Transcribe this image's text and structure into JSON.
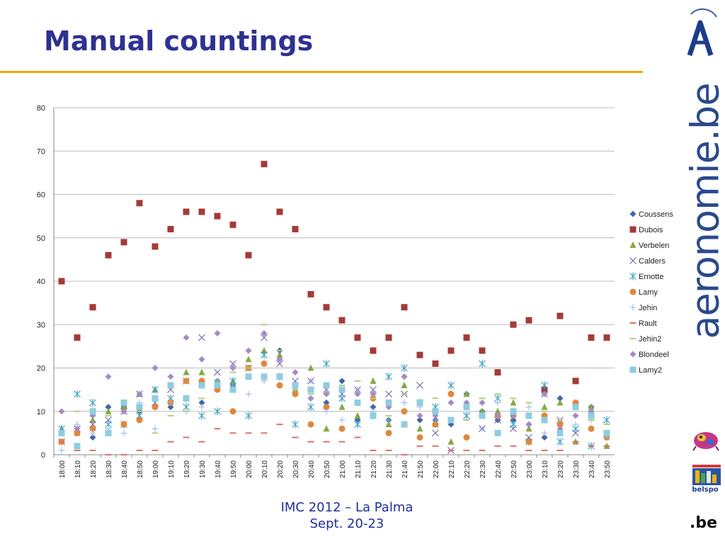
{
  "title": "Manual countings",
  "footer": {
    "line1": "IMC 2012 – La Palma",
    "line2": "Sept. 20-23"
  },
  "brand": {
    "site_name": "aeronomie.be",
    "belspo_label": "belspo",
    "be_label": ".be"
  },
  "chart_data": {
    "type": "scatter",
    "title": "",
    "xlabel": "",
    "ylabel": "",
    "ylim": [
      0,
      80
    ],
    "yticks": [
      0,
      10,
      20,
      30,
      40,
      50,
      60,
      70,
      80
    ],
    "grid": "horizontal",
    "legend_position": "right",
    "categories": [
      "18:00",
      "18:10",
      "18:20",
      "18:30",
      "18:40",
      "18:50",
      "19:00",
      "19:10",
      "19:20",
      "19:30",
      "19:40",
      "19:50",
      "20:00",
      "20:10",
      "20:20",
      "20:30",
      "20:40",
      "20:50",
      "21:00",
      "21:10",
      "21:20",
      "21:30",
      "21:40",
      "21:50",
      "22:00",
      "22:10",
      "22:20",
      "22:30",
      "22:40",
      "22:50",
      "23:00",
      "23:10",
      "23:20",
      "23:30",
      "23:40",
      "23:50"
    ],
    "series": [
      {
        "name": "Coussens",
        "marker": "diamond",
        "color": "#3f66a8",
        "values": [
          5,
          5,
          4,
          11,
          11,
          10,
          11,
          11,
          13,
          12,
          17,
          16,
          18,
          18,
          24,
          14,
          13,
          12,
          17,
          8,
          11,
          8,
          18,
          8,
          8,
          7,
          14,
          10,
          8,
          8,
          7,
          4,
          13,
          11,
          11,
          5
        ]
      },
      {
        "name": "Dubois",
        "marker": "square",
        "color": "#a53a38",
        "values": [
          40,
          27,
          34,
          46,
          49,
          58,
          48,
          52,
          56,
          56,
          55,
          53,
          46,
          67,
          56,
          52,
          37,
          34,
          31,
          27,
          24,
          27,
          34,
          23,
          21,
          24,
          27,
          24,
          19,
          30,
          31,
          15,
          32,
          17,
          27,
          27
        ]
      },
      {
        "name": "Verbelen",
        "marker": "triangle",
        "color": "#86a844",
        "values": [
          6,
          5,
          8,
          10,
          11,
          14,
          15,
          16,
          19,
          19,
          17,
          17,
          22,
          24,
          23,
          15,
          20,
          6,
          11,
          9,
          17,
          7,
          16,
          6,
          7,
          3,
          14,
          10,
          10,
          12,
          6,
          11,
          12,
          3,
          11,
          2
        ]
      },
      {
        "name": "Calders",
        "marker": "x",
        "color": "#7b68a8",
        "values": [
          3,
          6,
          7,
          8,
          10,
          14,
          12,
          15,
          17,
          27,
          19,
          21,
          20,
          27,
          21,
          17,
          17,
          15,
          14,
          15,
          15,
          14,
          14,
          16,
          5,
          1,
          9,
          6,
          8,
          6,
          4,
          14,
          8,
          5,
          9,
          5
        ]
      },
      {
        "name": "Ernotte",
        "marker": "star",
        "color": "#3fa2c4",
        "values": [
          6,
          14,
          12,
          7,
          7,
          9,
          15,
          13,
          11,
          9,
          10,
          17,
          9,
          23,
          18,
          7,
          11,
          21,
          13,
          7,
          9,
          18,
          20,
          12,
          11,
          16,
          9,
          21,
          13,
          7,
          3,
          16,
          3,
          6,
          2,
          8
        ]
      },
      {
        "name": "Lamy",
        "marker": "circle",
        "color": "#e0863b",
        "values": [
          3,
          5,
          6,
          5,
          7,
          8,
          11,
          12,
          17,
          17,
          15,
          10,
          20,
          21,
          16,
          14,
          7,
          11,
          6,
          12,
          13,
          5,
          10,
          4,
          7,
          14,
          4,
          9,
          9,
          9,
          3,
          9,
          7,
          12,
          6,
          4
        ]
      },
      {
        "name": "Jehin",
        "marker": "plus",
        "color": "#8fb4e3",
        "values": [
          1,
          7,
          5,
          6,
          5,
          12,
          6,
          12,
          10,
          11,
          17,
          16,
          14,
          17,
          18,
          15,
          17,
          10,
          8,
          15,
          10,
          8,
          12,
          11,
          8,
          12,
          11,
          6,
          12,
          10,
          11,
          5,
          5,
          7,
          8,
          4
        ]
      },
      {
        "name": "Rault",
        "marker": "dash",
        "color": "#e06c6c",
        "values": [
          3,
          1,
          1,
          0,
          0,
          1,
          1,
          3,
          4,
          3,
          6,
          5,
          5,
          5,
          7,
          4,
          3,
          3,
          3,
          4,
          1,
          1,
          0,
          2,
          2,
          1,
          1,
          1,
          2,
          2,
          1,
          1,
          1,
          3,
          2,
          2
        ]
      },
      {
        "name": "Jehin2",
        "marker": "dash",
        "color": "#b8cc7e",
        "values": [
          10,
          10,
          9,
          9,
          10,
          10,
          5,
          9,
          10,
          13,
          16,
          19,
          20,
          30,
          24,
          15,
          14,
          14,
          16,
          17,
          13,
          9,
          14,
          12,
          13,
          8,
          8,
          13,
          14,
          13,
          12,
          10,
          8,
          9,
          8,
          7
        ]
      },
      {
        "name": "Blondeel",
        "marker": "diamond",
        "color": "#a48cc4",
        "values": [
          10,
          6,
          9,
          18,
          10,
          14,
          20,
          18,
          27,
          22,
          28,
          20,
          24,
          28,
          22,
          19,
          13,
          14,
          15,
          14,
          14,
          11,
          18,
          9,
          9,
          12,
          12,
          12,
          9,
          9,
          7,
          14,
          6,
          9,
          10,
          5
        ]
      },
      {
        "name": "Lamy2",
        "marker": "square",
        "color": "#8ecde0",
        "values": [
          5,
          2,
          10,
          5,
          12,
          11,
          13,
          16,
          13,
          16,
          16,
          15,
          18,
          18,
          18,
          16,
          15,
          16,
          15,
          12,
          9,
          12,
          7,
          12,
          10,
          8,
          11,
          9,
          5,
          10,
          9,
          8,
          5,
          11,
          9,
          5
        ]
      }
    ]
  }
}
